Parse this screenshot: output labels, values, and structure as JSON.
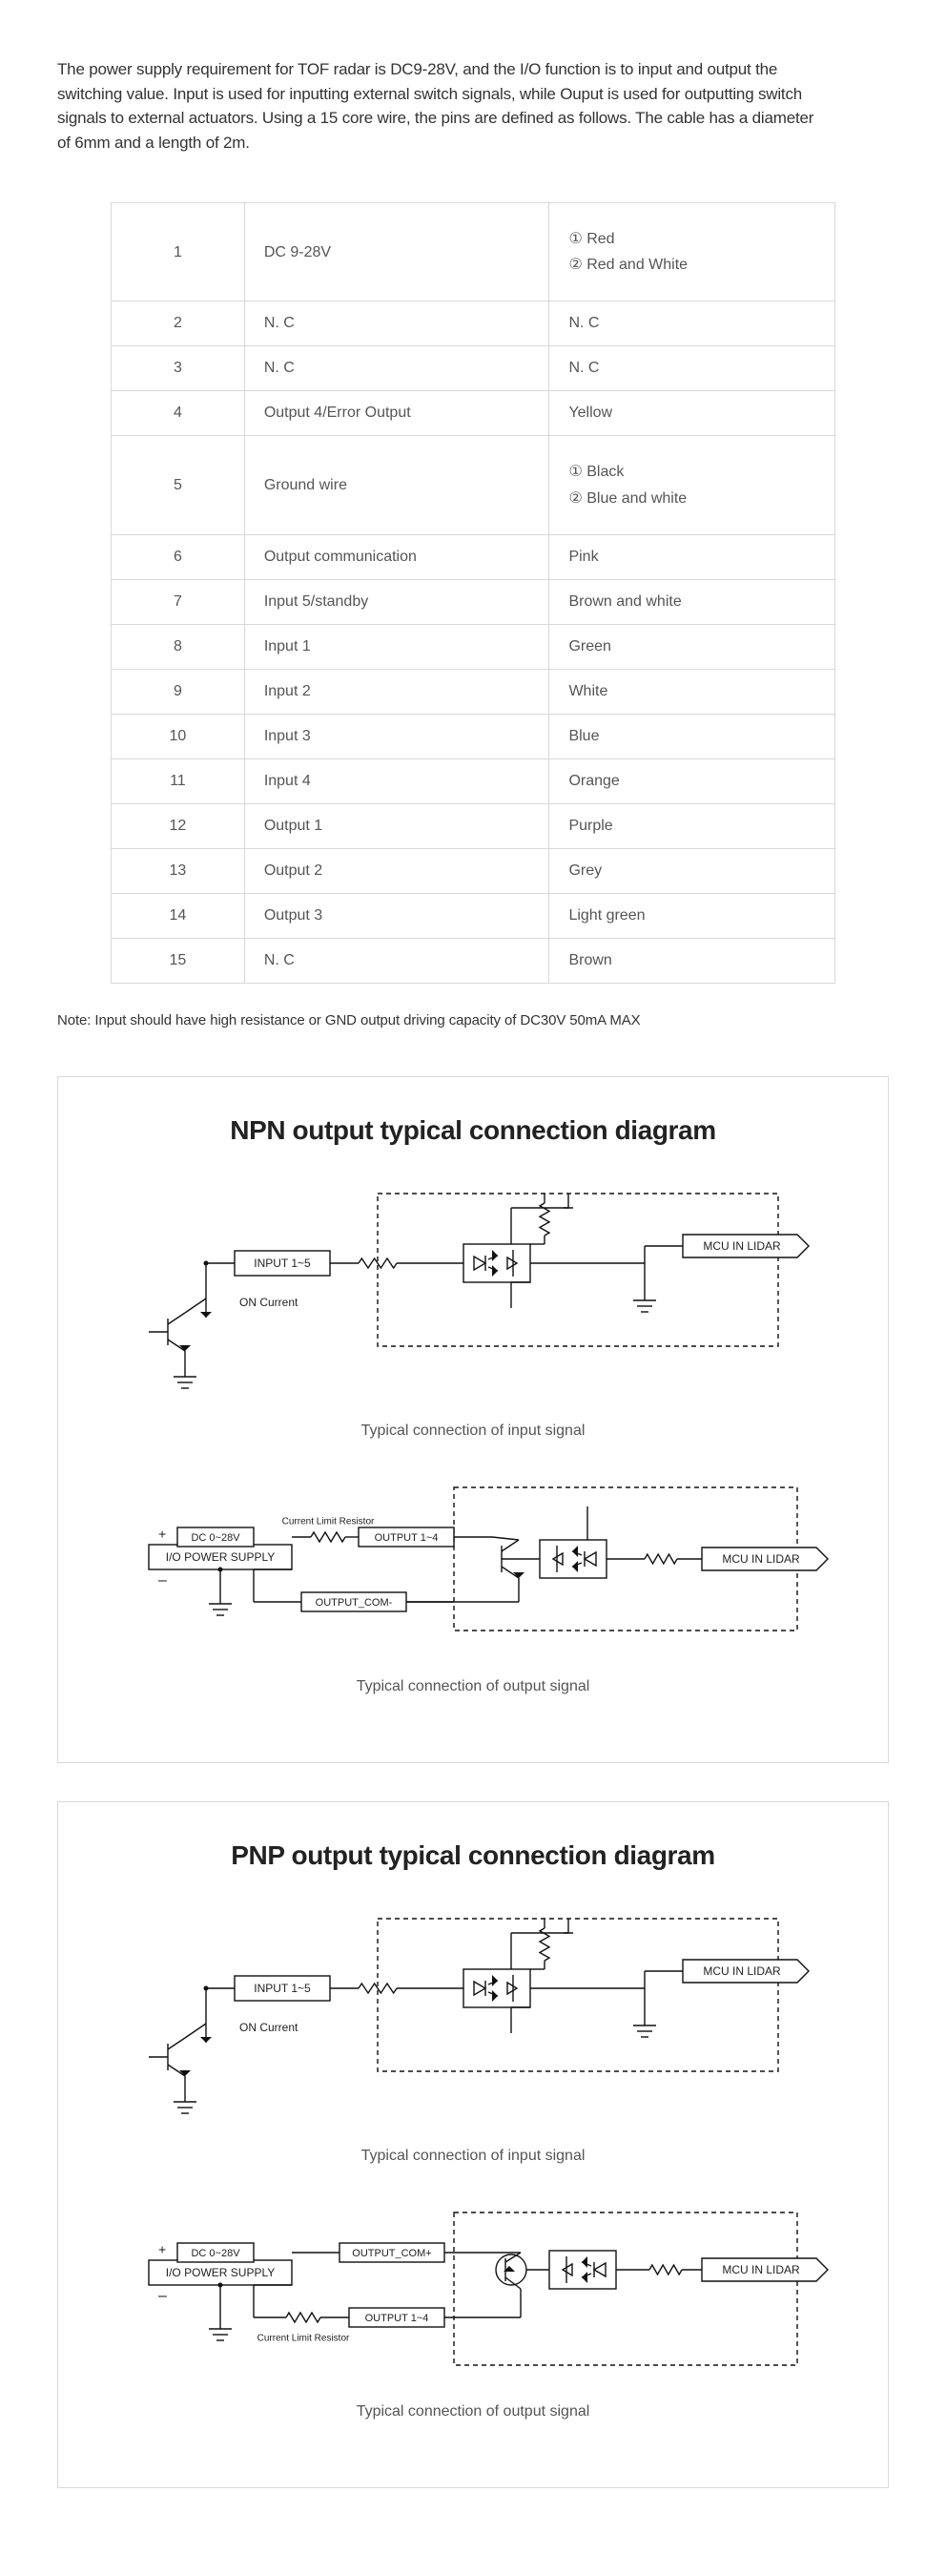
{
  "intro": "The power supply requirement for TOF radar is DC9-28V, and the I/O function is to input and output the switching value. Input is used for inputting external switch signals, while Ouput is used for outputting switch signals to external actuators. Using a 15 core wire, the pins are defined as follows. The cable has a diameter of 6mm and a length of 2m.",
  "table": {
    "rows": [
      {
        "num": "1",
        "desc": "DC 9-28V",
        "color_lines": [
          "① Red",
          "② Red and White"
        ],
        "tall": true
      },
      {
        "num": "2",
        "desc": "N. C",
        "color_lines": [
          "N. C"
        ]
      },
      {
        "num": "3",
        "desc": "N. C",
        "color_lines": [
          "N. C"
        ]
      },
      {
        "num": "4",
        "desc": "Output 4/Error Output",
        "color_lines": [
          "Yellow"
        ]
      },
      {
        "num": "5",
        "desc": "Ground wire",
        "color_lines": [
          "① Black",
          "② Blue and white"
        ],
        "tall": true
      },
      {
        "num": "6",
        "desc": "Output communication",
        "color_lines": [
          "Pink"
        ]
      },
      {
        "num": "7",
        "desc": "Input 5/standby",
        "color_lines": [
          "Brown and white"
        ]
      },
      {
        "num": "8",
        "desc": "Input 1",
        "color_lines": [
          "Green"
        ]
      },
      {
        "num": "9",
        "desc": "Input 2",
        "color_lines": [
          "White"
        ]
      },
      {
        "num": "10",
        "desc": "Input 3",
        "color_lines": [
          "Blue"
        ]
      },
      {
        "num": "11",
        "desc": "Input 4",
        "color_lines": [
          "Orange"
        ]
      },
      {
        "num": "12",
        "desc": "Output 1",
        "color_lines": [
          "Purple"
        ]
      },
      {
        "num": "13",
        "desc": "Output 2",
        "color_lines": [
          "Grey"
        ]
      },
      {
        "num": "14",
        "desc": "Output 3",
        "color_lines": [
          "Light green"
        ]
      },
      {
        "num": "15",
        "desc": "N. C",
        "color_lines": [
          "Brown"
        ]
      }
    ]
  },
  "note": "Note: Input should have high resistance or GND output driving capacity of DC30V 50mA MAX",
  "diagrams": {
    "npn_title": "NPN output typical connection diagram",
    "pnp_title": "PNP output typical connection diagram",
    "caption_input": "Typical connection of input signal",
    "caption_output": "Typical connection of output signal",
    "labels": {
      "input_box": "INPUT 1~5",
      "on_current": "ON Current",
      "mcu": "MCU IN LIDAR",
      "dc": "DC 0~28V",
      "io_ps": "I/O POWER SUPPLY",
      "output_box": "OUTPUT 1~4",
      "out_com_minus": "OUTPUT_COM-",
      "out_com_plus": "OUTPUT_COM+",
      "clr": "Current Limit Resistor",
      "plus": "+",
      "minus": "–"
    },
    "style": {
      "stroke": "#111111",
      "sw": 1.4,
      "dash": "5,4",
      "font_small": 12,
      "font_med": 14
    }
  }
}
